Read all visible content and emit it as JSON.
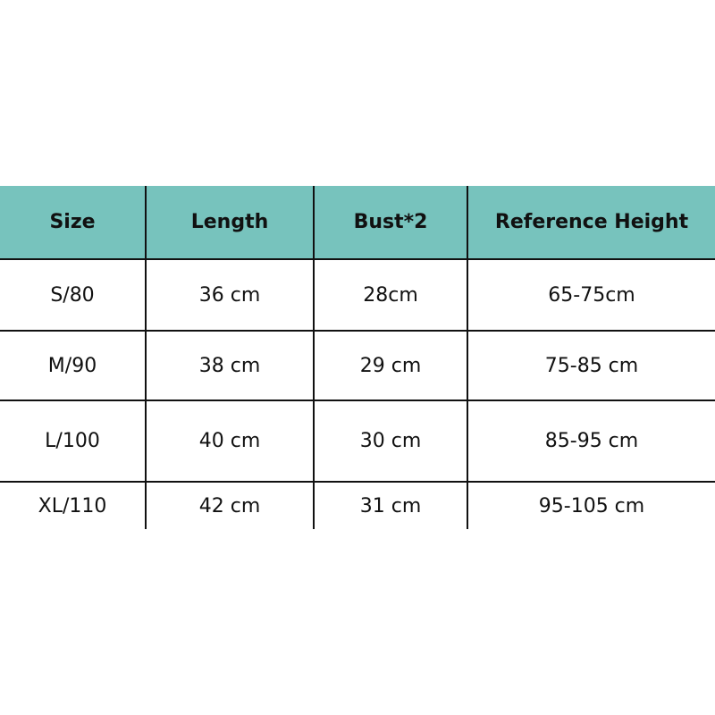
{
  "table": {
    "headers": [
      "Size",
      "Length",
      "Bust*2",
      "Reference Height"
    ],
    "rows": [
      [
        "S/80",
        "36 cm",
        "28cm",
        "65-75cm"
      ],
      [
        "M/90",
        "38 cm",
        "29 cm",
        "75-85 cm"
      ],
      [
        "L/100",
        "40 cm",
        "30 cm",
        "85-95 cm"
      ],
      [
        "XL/110",
        "42 cm",
        "31 cm",
        "95-105 cm"
      ]
    ],
    "header_color": "#77c3bd"
  }
}
